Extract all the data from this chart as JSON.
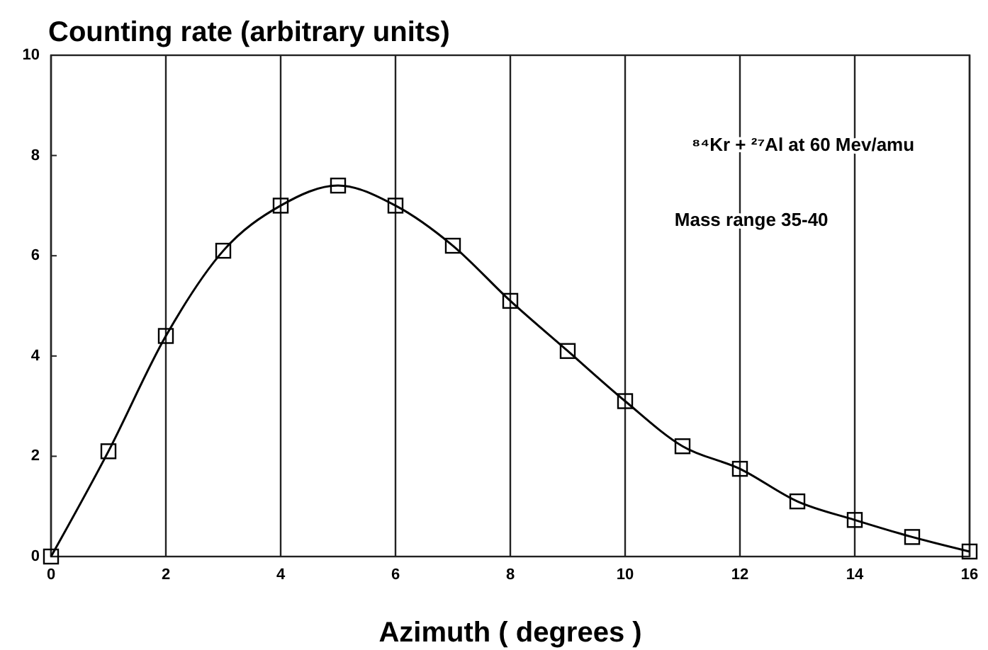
{
  "chart_data": {
    "type": "line",
    "ylabel": "Counting rate (arbitrary units)",
    "xlabel": "Azimuth ( degrees )",
    "x": [
      0,
      1,
      2,
      3,
      4,
      5,
      6,
      7,
      8,
      9,
      10,
      11,
      12,
      13,
      14,
      15,
      16
    ],
    "values": [
      0,
      2.1,
      4.4,
      6.1,
      7.0,
      7.4,
      7.0,
      6.2,
      5.1,
      4.1,
      3.1,
      2.2,
      1.75,
      1.1,
      0.73,
      0.39,
      0.1
    ],
    "color": "#000000",
    "marker": "square",
    "line_style": "solid",
    "xlim": [
      0,
      16
    ],
    "xticks": [
      0,
      2,
      4,
      6,
      8,
      10,
      12,
      14,
      16
    ],
    "ylim": [
      0,
      10
    ],
    "yticks": [
      0,
      2,
      4,
      6,
      8,
      10
    ],
    "grid": "x",
    "annotations": [
      "⁸⁴Kr + ²⁷Al at 60 Mev/amu",
      "Mass range 35-40"
    ]
  }
}
